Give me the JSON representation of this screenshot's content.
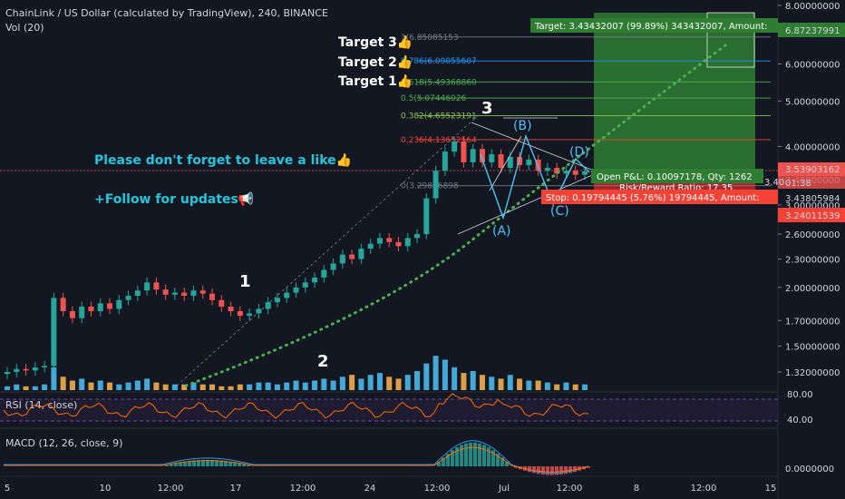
{
  "header": {
    "title": "ChainLink / US Dollar (calculated by TradingView), 240, BINANCE",
    "volume_label": "Vol (20)"
  },
  "annotations": {
    "like_note": "Please don't forget to leave a like👍",
    "follow_note": "+Follow for updates📢",
    "targets": [
      "Target 3👍",
      "Target 2👍",
      "Target 1👍"
    ],
    "waves": [
      "1",
      "2",
      "3"
    ],
    "corrective": [
      "(A)",
      "(B)",
      "(C)",
      "(D)"
    ]
  },
  "fib_levels": [
    {
      "label": "1(6.85085153"
    },
    {
      "label": "0.786(6.09055607"
    },
    {
      "label": "0.618(5.49368860"
    },
    {
      "label": "0.5(5.07446026"
    },
    {
      "label": "0.382(4.65523191"
    },
    {
      "label": "0.236(4.13652564"
    },
    {
      "label": "0(3.29806898"
    }
  ],
  "position": {
    "target_text": "Target: 3.43432007 (99.89%) 343432007, Amount: ",
    "open_pl_text": "Open P&L: 0.10097178, Qty: 1262",
    "rr_text": "Risk/Reward Ratio: 17.35",
    "stop_text": "Stop: 0.19794445 (5.76%) 19794445, Amount: ",
    "target_price": "6.87237991",
    "current_price": "3.53903162",
    "countdown": "01:38",
    "entry_price": "3.43805984",
    "stop_price": "3.24011539",
    "entry_short": "3.40"
  },
  "colors": {
    "background": "#131722",
    "up": "#26a69a",
    "down": "#ef5350",
    "green_box": "#2e7d32",
    "stop_red": "#f44336",
    "trend_dots": "#4caf50",
    "rsi_line": "#ff6d00",
    "macd_line": "#2196f3",
    "signal_line": "#ff6d00"
  },
  "chart_data": {
    "type": "candlestick",
    "price_axis_ticks": [
      "8.00000000",
      "6.00000000",
      "5.00000000",
      "4.00000000",
      "3.40000000",
      "3.00000000",
      "2.60000000",
      "2.30000000",
      "2.00000000",
      "1.70000000",
      "1.50000000",
      "1.32000000"
    ],
    "rsi": {
      "label": "RSI (14, close)",
      "ticks": [
        "80.00",
        "40.00"
      ]
    },
    "macd": {
      "label": "MACD (12, 26, close, 9)",
      "ticks": [
        "0.0000000"
      ]
    },
    "time_ticks": [
      "5",
      "10",
      "12:00",
      "17",
      "12:00",
      "24",
      "12:00",
      "Jul",
      "12:00",
      "8",
      "12:00",
      "15"
    ],
    "close_path": [
      1.32,
      1.34,
      1.33,
      1.35,
      1.36,
      1.9,
      1.78,
      1.72,
      1.82,
      1.78,
      1.85,
      1.8,
      1.88,
      1.92,
      1.97,
      2.05,
      1.98,
      1.93,
      1.95,
      1.92,
      1.97,
      1.94,
      1.88,
      1.82,
      1.78,
      1.74,
      1.76,
      1.8,
      1.86,
      1.9,
      1.95,
      2.0,
      2.05,
      2.1,
      2.18,
      2.25,
      2.35,
      2.3,
      2.42,
      2.48,
      2.55,
      2.5,
      2.45,
      2.55,
      2.6,
      3.1,
      3.55,
      3.9,
      4.1,
      3.7,
      3.95,
      3.7,
      3.85,
      3.6,
      3.8,
      3.65,
      3.75,
      3.55,
      3.6,
      3.5,
      3.55,
      3.48,
      3.54
    ],
    "volume": [
      2,
      3,
      2,
      2,
      3,
      12,
      7,
      5,
      6,
      4,
      5,
      4,
      3,
      4,
      5,
      6,
      4,
      3,
      3,
      3,
      4,
      3,
      3,
      2,
      2,
      3,
      3,
      4,
      4,
      3,
      4,
      5,
      4,
      5,
      6,
      5,
      7,
      8,
      6,
      8,
      9,
      7,
      6,
      8,
      10,
      14,
      18,
      16,
      12,
      9,
      10,
      8,
      7,
      6,
      8,
      6,
      5,
      5,
      4,
      3,
      4,
      3,
      3
    ]
  }
}
